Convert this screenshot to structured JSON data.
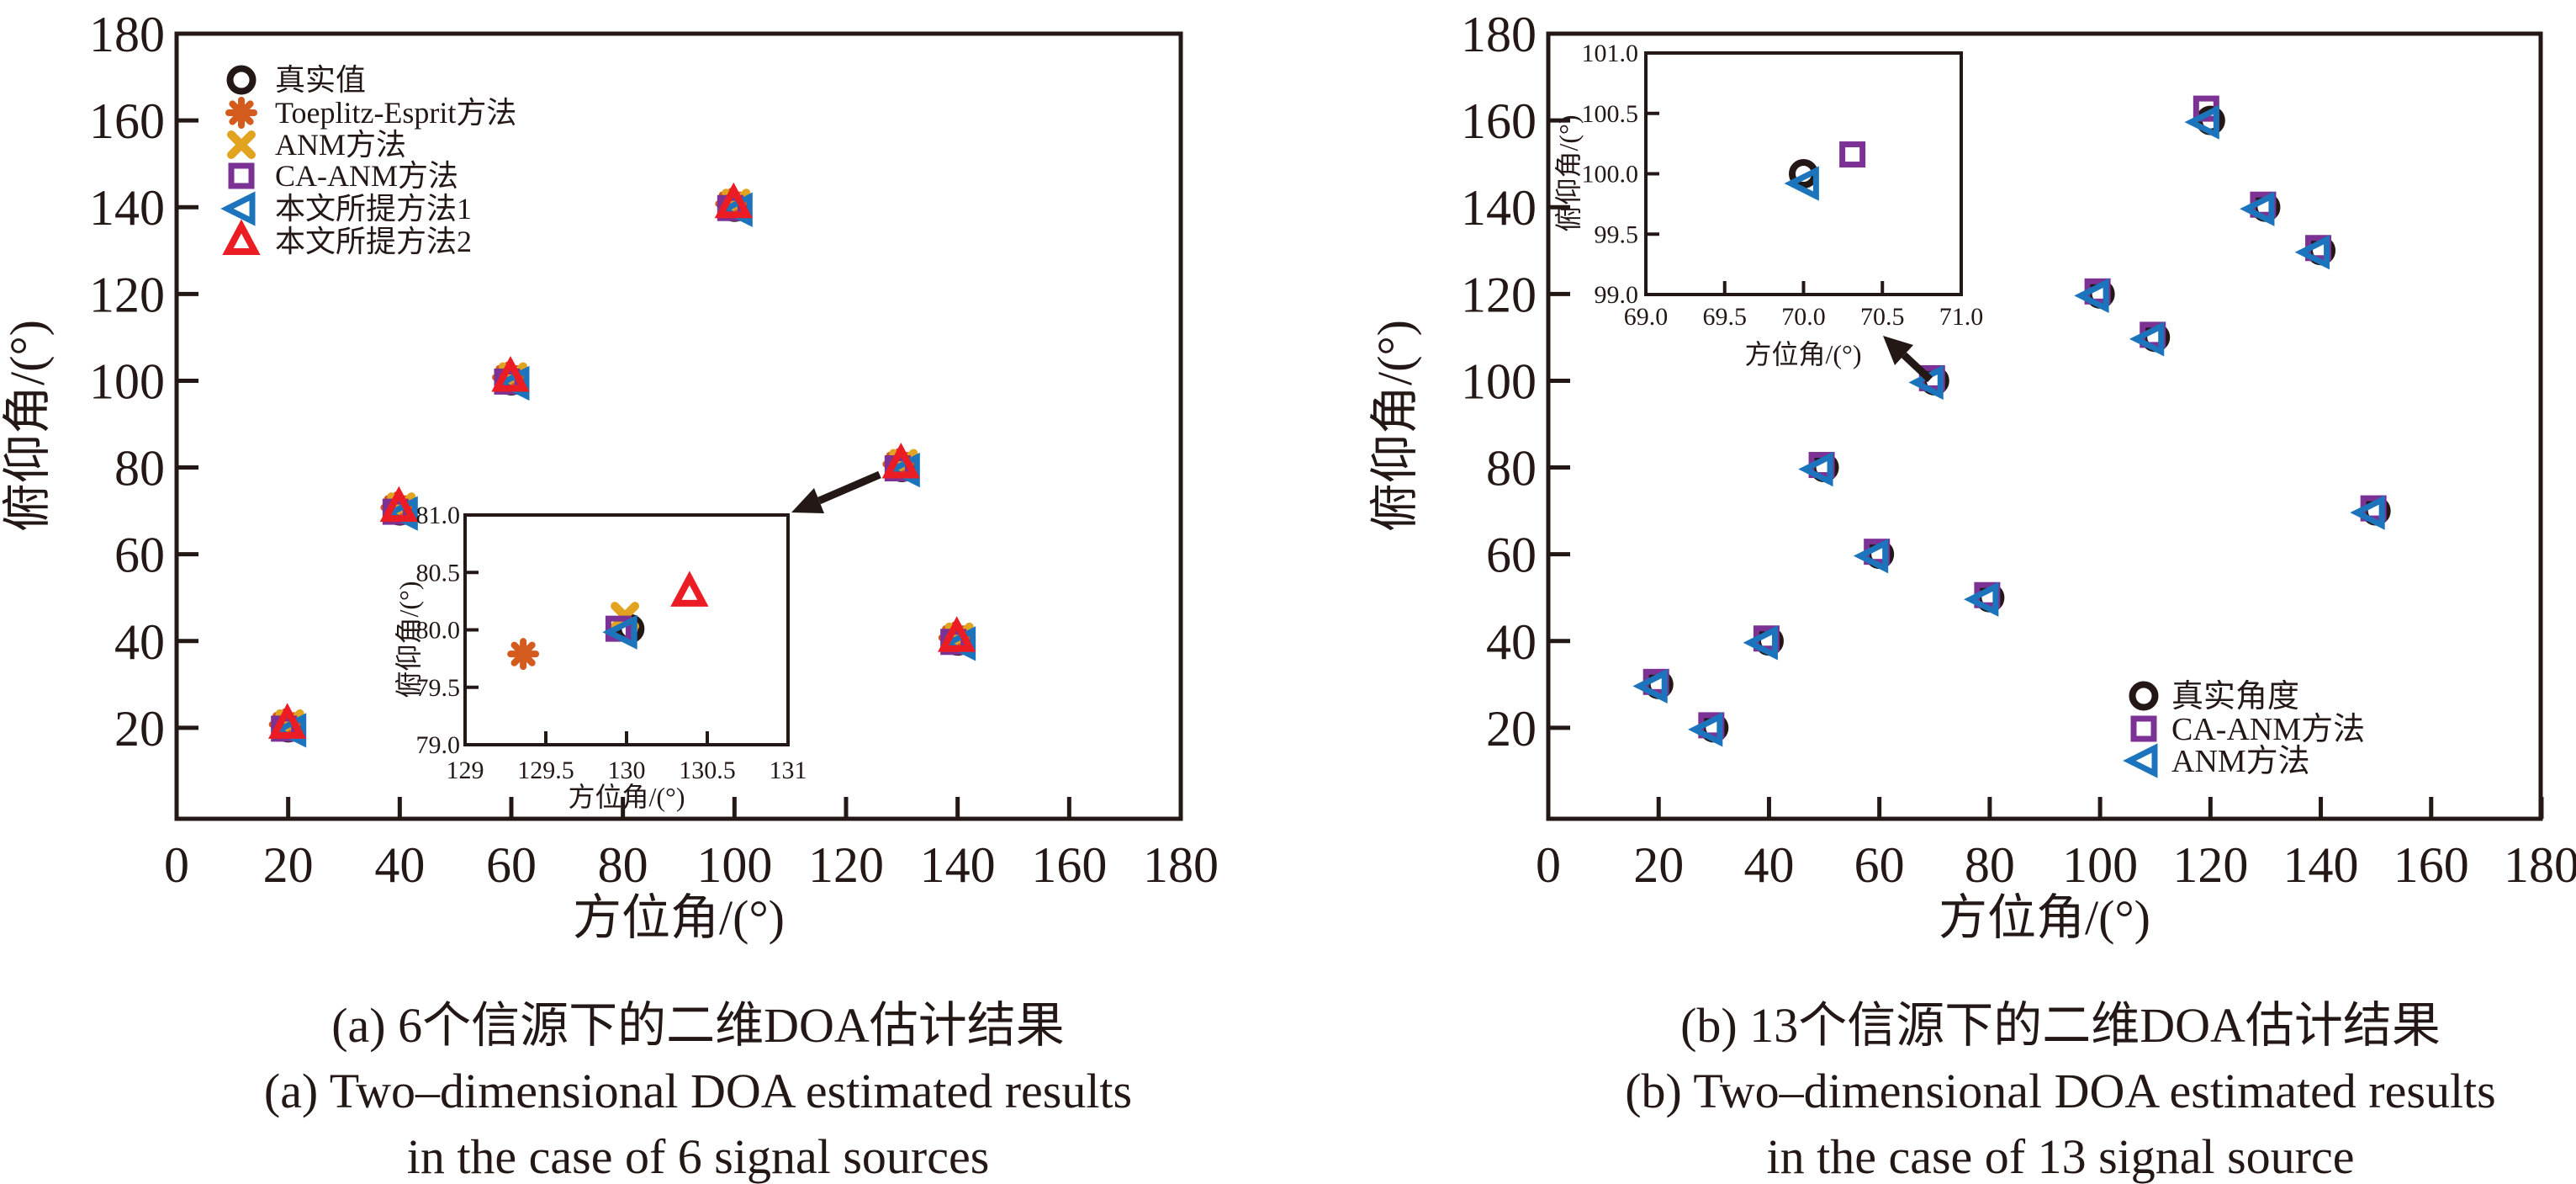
{
  "background": "#FFFFFF",
  "chart_data": [
    {
      "type": "scatter",
      "panel": "a",
      "xlabel": "方位角/(°)",
      "ylabel": "俯仰角/(°)",
      "xlim": [
        0,
        180
      ],
      "ylim": [
        0,
        180
      ],
      "xticks": [
        0,
        20,
        40,
        60,
        80,
        100,
        120,
        140,
        160,
        180
      ],
      "yticks": [
        20,
        40,
        60,
        80,
        100,
        120,
        140,
        160,
        180
      ],
      "grid": false,
      "legend_position": "top-left",
      "legend": [
        {
          "method": "true",
          "marker": "circle",
          "color": "#231815",
          "label": "真实值"
        },
        {
          "method": "toeplitz",
          "marker": "asterisk",
          "color": "#D35B1E",
          "label": "Toeplitz-Esprit方法"
        },
        {
          "method": "anm",
          "marker": "x",
          "color": "#E2A321",
          "label": "ANM方法"
        },
        {
          "method": "caanm",
          "marker": "square",
          "color": "#7B3294",
          "label": "CA-ANM方法"
        },
        {
          "method": "m1",
          "marker": "tri-left",
          "color": "#1C75BC",
          "label": "本文所提方法1"
        },
        {
          "method": "m2",
          "marker": "tri-up",
          "color": "#EC1C24",
          "label": "本文所提方法2"
        }
      ],
      "sources": [
        [
          20,
          20
        ],
        [
          40,
          70
        ],
        [
          60,
          100
        ],
        [
          100,
          140
        ],
        [
          130,
          80
        ],
        [
          140,
          40
        ]
      ],
      "inset": {
        "xlabel": "方位角/(°)",
        "ylabel": "俯仰角/(°)",
        "xlim": [
          129,
          131
        ],
        "ylim": [
          79,
          81
        ],
        "xtick_labels": [
          "129",
          "129.5",
          "130",
          "130.5",
          "131"
        ],
        "ytick_labels": [
          "79.0",
          "79.5",
          "80.0",
          "80.5",
          "81.0"
        ],
        "zoomed_source": [
          130,
          80
        ],
        "points": [
          {
            "method": "true",
            "az": 130.02,
            "elev": 80.01
          },
          {
            "method": "toeplitz",
            "az": 129.36,
            "elev": 79.79
          },
          {
            "method": "anm",
            "az": 129.99,
            "elev": 80.12
          },
          {
            "method": "caanm",
            "az": 129.95,
            "elev": 80.01
          },
          {
            "method": "m1",
            "az": 129.98,
            "elev": 79.98
          },
          {
            "method": "m2",
            "az": 130.39,
            "elev": 80.32
          }
        ]
      },
      "caption": [
        "(a) 6个信源下的二维DOA估计结果",
        "(a) Two–dimensional DOA estimated results",
        "in the case of 6 signal sources"
      ]
    },
    {
      "type": "scatter",
      "panel": "b",
      "xlabel": "方位角/(°)",
      "ylabel": "俯仰角/(°)",
      "xlim": [
        0,
        180
      ],
      "ylim": [
        0,
        180
      ],
      "xticks": [
        0,
        20,
        40,
        60,
        80,
        100,
        120,
        140,
        160,
        180
      ],
      "yticks": [
        20,
        40,
        60,
        80,
        100,
        120,
        140,
        160,
        180
      ],
      "grid": false,
      "legend_position": "bottom-right",
      "legend": [
        {
          "method": "true",
          "marker": "circle",
          "color": "#231815",
          "label": "真实角度"
        },
        {
          "method": "caanm",
          "marker": "square",
          "color": "#7B3294",
          "label": "CA-ANM方法"
        },
        {
          "method": "anm",
          "marker": "tri-left",
          "color": "#1C75BC",
          "label": "ANM方法"
        }
      ],
      "sources": [
        [
          20,
          30
        ],
        [
          30,
          20
        ],
        [
          40,
          40
        ],
        [
          50,
          80
        ],
        [
          60,
          60
        ],
        [
          70,
          100
        ],
        [
          80,
          50
        ],
        [
          100,
          120
        ],
        [
          110,
          110
        ],
        [
          120,
          160
        ],
        [
          130,
          140
        ],
        [
          140,
          130
        ],
        [
          150,
          70
        ]
      ],
      "inset": {
        "xlabel": "方位角/(°)",
        "ylabel": "俯仰角/(°)",
        "xlim": [
          69,
          71
        ],
        "ylim": [
          99,
          101
        ],
        "xtick_labels": [
          "69.0",
          "69.5",
          "70.0",
          "70.5",
          "71.0"
        ],
        "ytick_labels": [
          "99.0",
          "99.5",
          "100.0",
          "100.5",
          "101.0"
        ],
        "zoomed_source": [
          70,
          100
        ],
        "points": [
          {
            "method": "true",
            "az": 70.0,
            "elev": 100.0
          },
          {
            "method": "caanm",
            "az": 70.31,
            "elev": 100.16
          },
          {
            "method": "anm",
            "az": 70.01,
            "elev": 99.92
          }
        ]
      },
      "caption": [
        "(b) 13个信源下的二维DOA估计结果",
        "(b) Two–dimensional DOA estimated results",
        "in the case of 13 signal source"
      ]
    }
  ]
}
